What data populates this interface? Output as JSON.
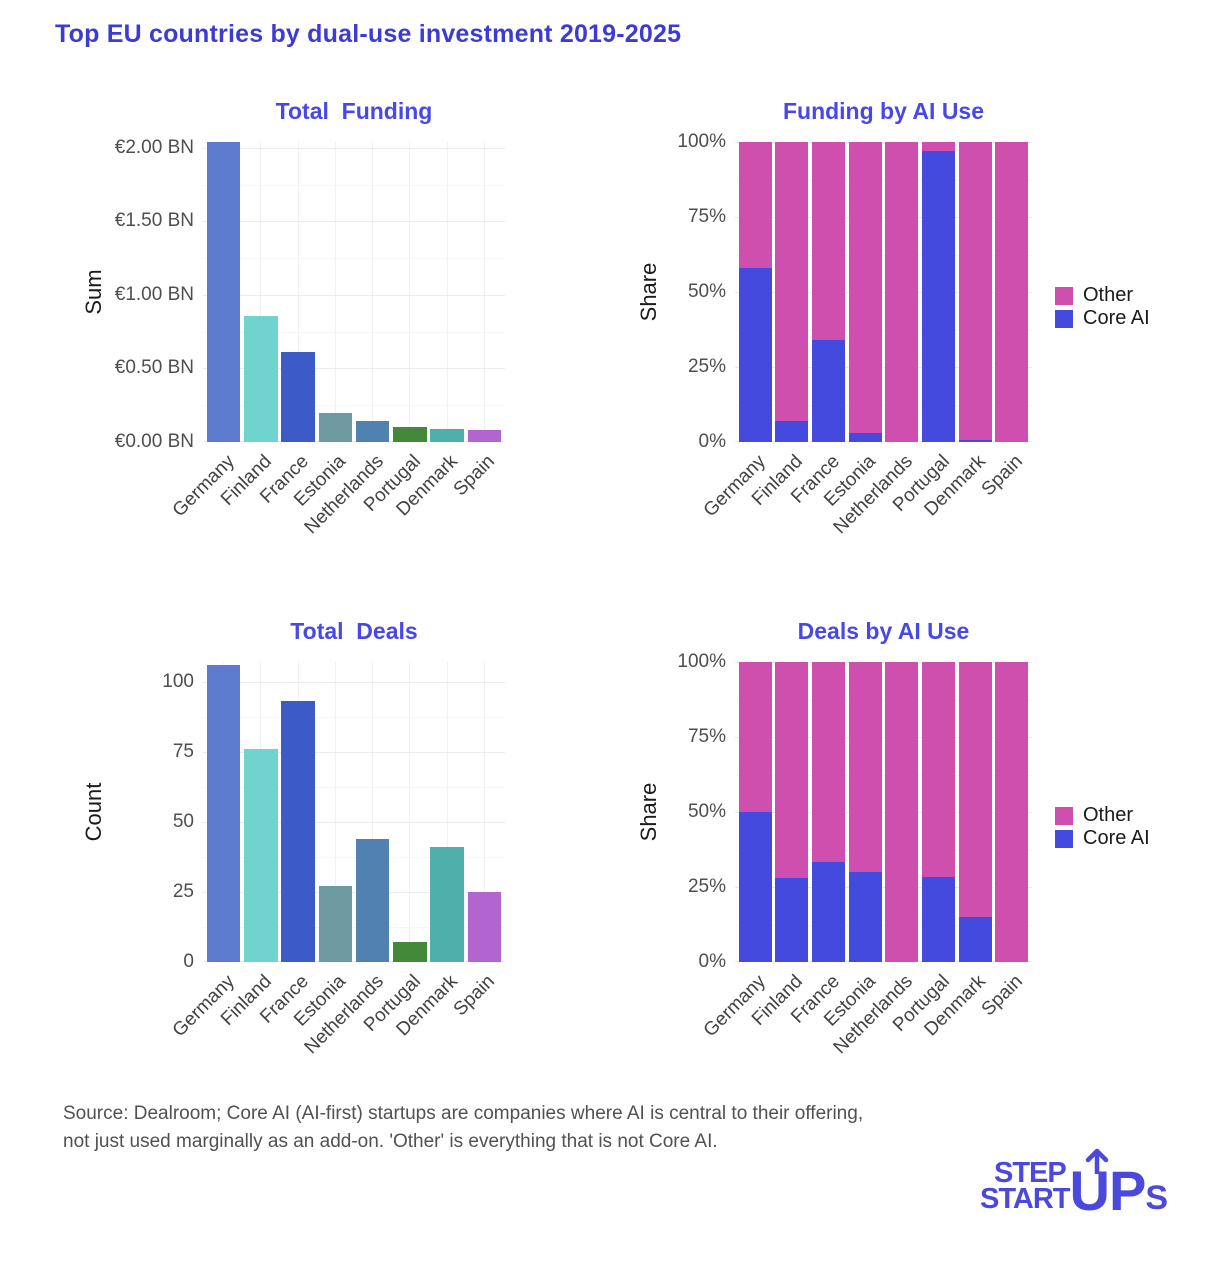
{
  "header": {
    "title": "Top EU countries by dual-use investment 2019-2025"
  },
  "categories": [
    "Germany",
    "Finland",
    "France",
    "Estonia",
    "Netherlands",
    "Portugal",
    "Denmark",
    "Spain"
  ],
  "palette": {
    "country_bar_colors": [
      "#5C7BCE",
      "#6FD4CE",
      "#3C5BC6",
      "#6D99A1",
      "#5181B1",
      "#44883A",
      "#4FB0AB",
      "#B264CF"
    ],
    "core_ai_blue": "#454ADF",
    "other_pink": "#CF4FAF",
    "subplot_title_blue": "#4848E6",
    "header_blue": "#3C3CD4",
    "logo_blue": "#4A49DB",
    "grid_major": "#ebebeb",
    "grid_minor": "#f6f6f6",
    "grid_vertical": "#f1f1f1"
  },
  "chart_data": [
    {
      "type": "bar",
      "title": "Total  Funding",
      "ylabel": "Sum",
      "categories": [
        "Germany",
        "Finland",
        "France",
        "Estonia",
        "Netherlands",
        "Portugal",
        "Denmark",
        "Spain"
      ],
      "values": [
        2.04,
        0.86,
        0.61,
        0.2,
        0.14,
        0.1,
        0.09,
        0.08
      ],
      "unit": "EUR BN",
      "ymax": 2.0408,
      "ytick_values": [
        0,
        0.5,
        1.0,
        1.5,
        2.0
      ],
      "ytick_labels": [
        "€0.00 BN",
        "€0.50 BN",
        "€1.00 BN",
        "€1.50 BN",
        "€2.00 BN"
      ],
      "grid": "on",
      "legend": null
    },
    {
      "type": "stacked_bar",
      "title": "Funding by AI Use",
      "ylabel": "Share",
      "categories": [
        "Germany",
        "Finland",
        "France",
        "Estonia",
        "Netherlands",
        "Portugal",
        "Denmark",
        "Spain"
      ],
      "series": [
        {
          "name": "Core AI",
          "values": [
            58,
            7,
            34,
            3,
            0,
            97,
            0.6,
            0
          ]
        },
        {
          "name": "Other",
          "values": [
            42,
            93,
            66,
            97,
            100,
            3,
            99.4,
            100
          ]
        }
      ],
      "unit": "percent",
      "ymax": 100,
      "ytick_values": [
        0,
        25,
        50,
        75,
        100
      ],
      "ytick_labels": [
        "0%",
        "25%",
        "50%",
        "75%",
        "100%"
      ],
      "grid": "on",
      "legend": [
        "Other",
        "Core AI"
      ],
      "legend_position": "right"
    },
    {
      "type": "bar",
      "title": "Total  Deals",
      "ylabel": "Count",
      "categories": [
        "Germany",
        "Finland",
        "France",
        "Estonia",
        "Netherlands",
        "Portugal",
        "Denmark",
        "Spain"
      ],
      "values": [
        106,
        76,
        93,
        27,
        44,
        7,
        41,
        25
      ],
      "unit": "deals",
      "ymax": 107,
      "ytick_values": [
        0,
        25,
        50,
        75,
        100
      ],
      "ytick_labels": [
        "0",
        "25",
        "50",
        "75",
        "100"
      ],
      "grid": "on",
      "legend": null
    },
    {
      "type": "stacked_bar",
      "title": "Deals by AI Use",
      "ylabel": "Share",
      "categories": [
        "Germany",
        "Finland",
        "France",
        "Estonia",
        "Netherlands",
        "Portugal",
        "Denmark",
        "Spain"
      ],
      "series": [
        {
          "name": "Core AI",
          "values": [
            50,
            28,
            33.5,
            30,
            0,
            28.5,
            15,
            0
          ]
        },
        {
          "name": "Other",
          "values": [
            50,
            72,
            66.5,
            70,
            100,
            71.5,
            85,
            100
          ]
        }
      ],
      "unit": "percent",
      "ymax": 100,
      "ytick_values": [
        0,
        25,
        50,
        75,
        100
      ],
      "ytick_labels": [
        "0%",
        "25%",
        "50%",
        "75%",
        "100%"
      ],
      "grid": "on",
      "legend": [
        "Other",
        "Core AI"
      ],
      "legend_position": "right"
    }
  ],
  "footer": {
    "source_line1": "Source: Dealroom; Core AI (AI-first) startups are companies where AI is central to their offering,",
    "source_line2": "not just used marginally as an add-on. 'Other' is everything that is not Core AI.",
    "logo": {
      "line1": "STEP",
      "line2_start": "START",
      "u": "U",
      "p": "P",
      "s": "S"
    }
  }
}
